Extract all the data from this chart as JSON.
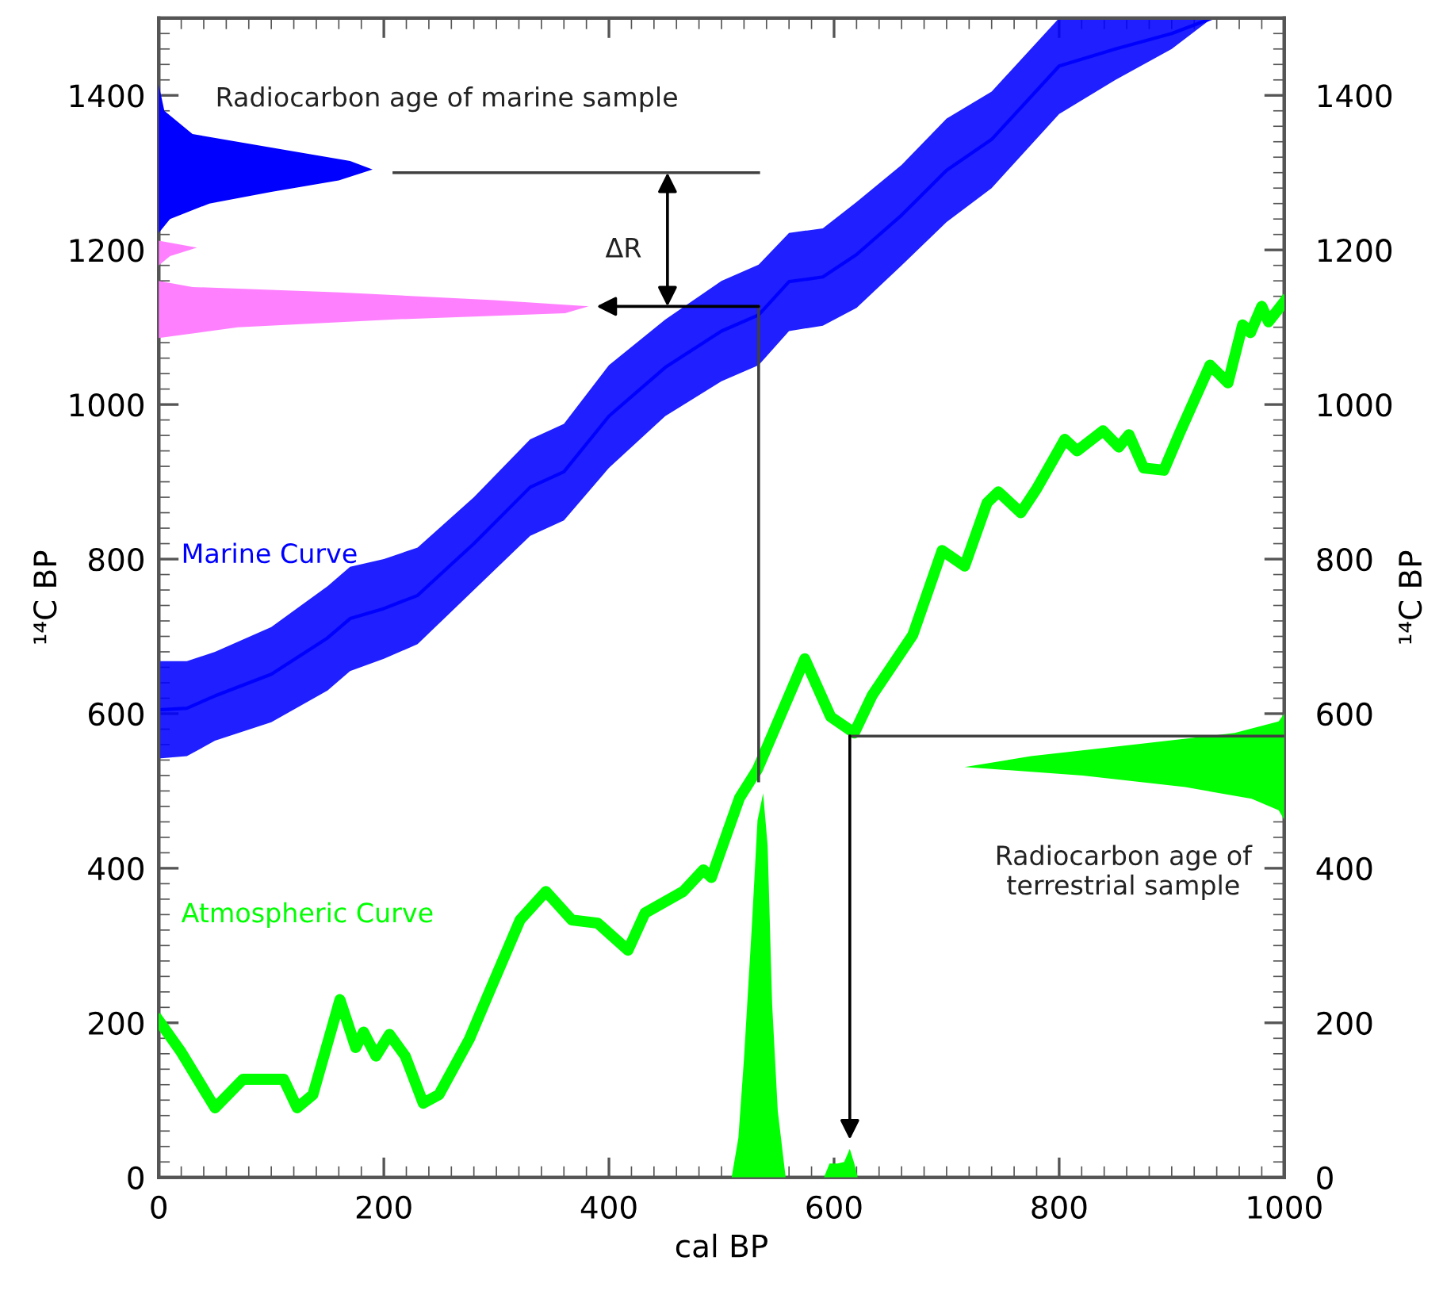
{
  "chart_data": {
    "type": "line",
    "xlabel": "cal BP",
    "ylabel": "¹⁴C BP",
    "y2label": "¹⁴C BP",
    "xlim": [
      0,
      1000
    ],
    "xticks": [
      0,
      200,
      400,
      600,
      800,
      1000
    ],
    "ylim": [
      0,
      1500
    ],
    "yticks": [
      0,
      200,
      400,
      600,
      800,
      1000,
      1200,
      1400
    ],
    "y2lim": [
      0,
      1500
    ],
    "y2ticks": [
      0,
      200,
      400,
      600,
      800,
      1000,
      1200,
      1400
    ],
    "grid": false,
    "legend": false,
    "series": [
      {
        "name": "Marine Curve",
        "color": "#0000ff",
        "x": [
          0,
          25,
          50,
          100,
          150,
          170,
          200,
          230,
          280,
          330,
          360,
          400,
          450,
          500,
          533,
          560,
          590,
          620,
          660,
          700,
          740,
          800,
          850,
          900,
          936
        ],
        "values": [
          605,
          607,
          623,
          651,
          698,
          723,
          736,
          753,
          820,
          893,
          913,
          985,
          1048,
          1095,
          1116,
          1159,
          1165,
          1194,
          1245,
          1303,
          1343,
          1438,
          1460,
          1480,
          1500
        ],
        "lower": [
          542,
          545,
          565,
          589,
          630,
          655,
          671,
          690,
          760,
          830,
          850,
          918,
          985,
          1030,
          1051,
          1095,
          1102,
          1125,
          1180,
          1236,
          1280,
          1376,
          1420,
          1460,
          1500
        ],
        "upper": [
          668,
          668,
          680,
          712,
          765,
          790,
          800,
          815,
          880,
          955,
          975,
          1051,
          1110,
          1160,
          1181,
          1222,
          1228,
          1262,
          1310,
          1370,
          1405,
          1500,
          1500,
          1500,
          1500
        ]
      },
      {
        "name": "Atmospheric Curve",
        "color": "#00ff00",
        "x": [
          0,
          20,
          50,
          75,
          111,
          123,
          137,
          161,
          175,
          182,
          193,
          205,
          219,
          235,
          249,
          276,
          294,
          321,
          344,
          367,
          390,
          417,
          432,
          466,
          484,
          491,
          516,
          532,
          574,
          597,
          618,
          634,
          670,
          696,
          716,
          736,
          746,
          766,
          780,
          805,
          816,
          839,
          853,
          862,
          875,
          893,
          907,
          934,
          950,
          963,
          970,
          980,
          986,
          1000
        ],
        "values": [
          203,
          162,
          90,
          127,
          127,
          90,
          107,
          230,
          168,
          188,
          157,
          185,
          157,
          96,
          107,
          179,
          241,
          333,
          370,
          333,
          329,
          294,
          342,
          370,
          398,
          388,
          491,
          528,
          671,
          596,
          575,
          624,
          702,
          811,
          791,
          873,
          887,
          860,
          891,
          955,
          940,
          966,
          945,
          961,
          918,
          915,
          963,
          1051,
          1028,
          1103,
          1093,
          1127,
          1107,
          1133
        ]
      },
      {
        "type": "area",
        "color": "#0000ff",
        "x": [
          0,
          5,
          30,
          110,
          170,
          190,
          160,
          100,
          45,
          10,
          0
        ],
        "values": [
          1414,
          1380,
          1350,
          1330,
          1315,
          1304,
          1290,
          1275,
          1260,
          1240,
          1222
        ]
      },
      {
        "type": "area",
        "color": "#ff80ff",
        "x": [
          0,
          34,
          10,
          0,
          0,
          0,
          30,
          161,
          298,
          382,
          361,
          207,
          70,
          0
        ],
        "values": [
          1212,
          1203,
          1192,
          1180,
          1170,
          1160,
          1152,
          1145,
          1135,
          1127,
          1118,
          1110,
          1100,
          1086
        ]
      },
      {
        "type": "area",
        "color": "#00ff00",
        "x": [
          1000,
          995,
          956,
          866,
          775,
          716,
          821,
          912,
          971,
          995,
          1000
        ],
        "values": [
          600,
          590,
          575,
          560,
          545,
          531,
          520,
          505,
          490,
          475,
          463
        ]
      },
      {
        "type": "area",
        "color": "#00ff00",
        "x": [
          509,
          515,
          520,
          527,
          532,
          537,
          541,
          545,
          550,
          557,
          591,
          596,
          603,
          609,
          614,
          618,
          621
        ],
        "values": [
          0,
          51,
          154,
          326,
          462,
          497,
          429,
          224,
          86,
          0,
          0,
          18,
          18,
          20,
          37,
          18,
          0
        ]
      },
      {
        "color": "#404040",
        "x": [
          209,
          533
        ],
        "values": [
          1300,
          1300
        ]
      },
      {
        "color": "#404040",
        "x": [
          533,
          533
        ],
        "values": [
          1127,
          513
        ]
      },
      {
        "color": "#404040",
        "x": [
          1000,
          614
        ],
        "values": [
          571,
          571
        ]
      }
    ],
    "annotations": [
      "Radiocarbon age of marine sample",
      "ΔR",
      "Radiocarbon age of\nterrestrial sample"
    ]
  }
}
